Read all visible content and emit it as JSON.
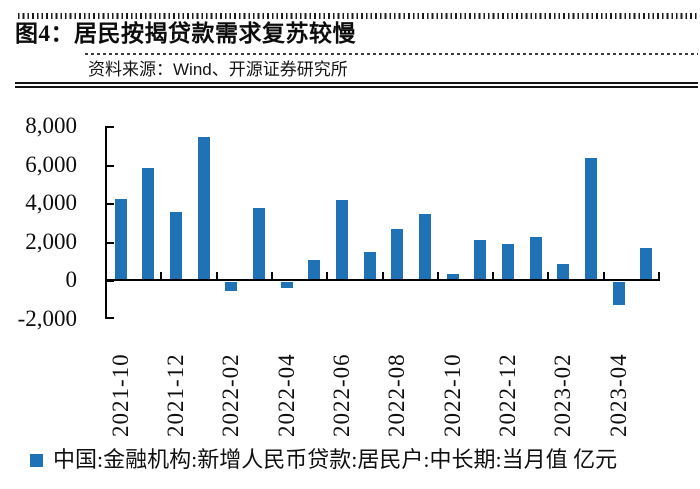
{
  "header": {
    "title": "图4：居民按揭贷款需求复苏较慢",
    "source_label": "资料来源：Wind、开源证券研究所"
  },
  "legend": {
    "swatch_color": "#1F72B5",
    "label": "中国:金融机构:新增人民币贷款:居民户:中长期:当月值 亿元"
  },
  "chart_data": {
    "type": "bar",
    "title": "居民按揭贷款需求复苏较慢",
    "categories": [
      "2021-10",
      "2021-11",
      "2021-12",
      "2022-01",
      "2022-02",
      "2022-03",
      "2022-04",
      "2022-05",
      "2022-06",
      "2022-07",
      "2022-08",
      "2022-09",
      "2022-10",
      "2022-11",
      "2022-12",
      "2023-01",
      "2023-02",
      "2023-03",
      "2023-04",
      "2023-05"
    ],
    "series": [
      {
        "name": "中国:金融机构:新增人民币贷款:居民户:中长期:当月值",
        "unit": "亿元",
        "values": [
          4221,
          5821,
          3558,
          7424,
          -459,
          3735,
          -313,
          1047,
          4167,
          1486,
          2658,
          3456,
          332,
          2103,
          1865,
          2231,
          863,
          6348,
          -1156,
          1684
        ]
      }
    ],
    "x_tick_labels": [
      "2021-10",
      "2021-12",
      "2022-02",
      "2022-04",
      "2022-06",
      "2022-08",
      "2022-10",
      "2022-12",
      "2023-02",
      "2023-04"
    ],
    "y_ticks": [
      8000,
      6000,
      4000,
      2000,
      0,
      -2000
    ],
    "y_tick_labels": [
      "8,000",
      "6,000",
      "4,000",
      "2,000",
      "0",
      "-2,000"
    ],
    "ylim": [
      -2000,
      8000
    ],
    "bar_color": "#1F72B5",
    "grid": false,
    "legend_position": "bottom"
  }
}
